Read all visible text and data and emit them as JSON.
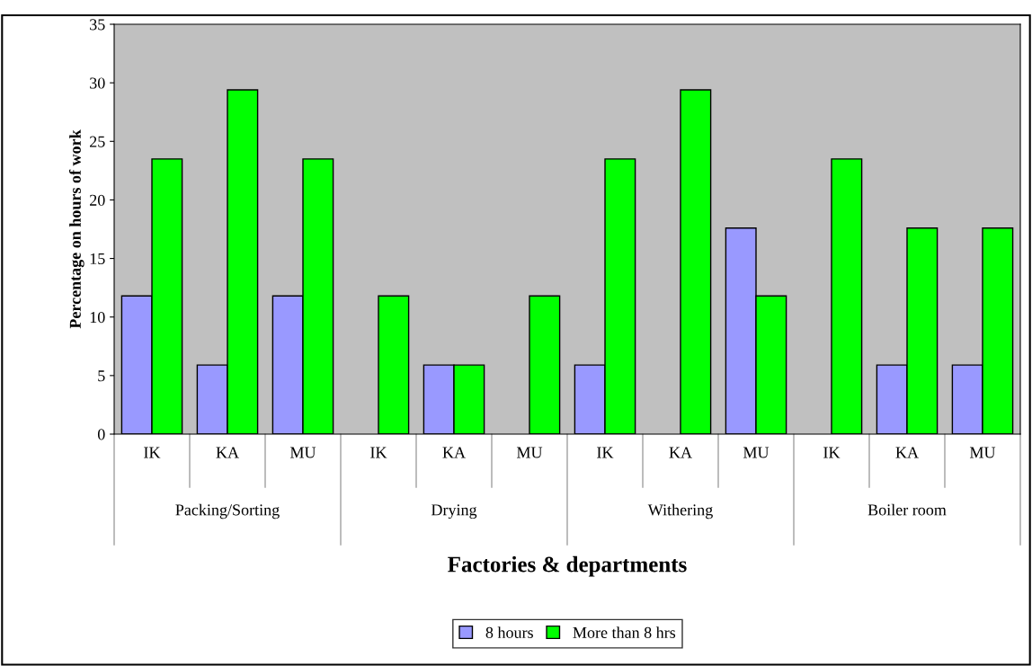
{
  "chart_data": {
    "type": "bar",
    "categories": [
      "IK",
      "KA",
      "MU",
      "IK",
      "KA",
      "MU",
      "IK",
      "KA",
      "MU",
      "IK",
      "KA",
      "MU"
    ],
    "series": [
      {
        "name": "8 hours",
        "color": "#9999ff",
        "values": [
          11.8,
          5.9,
          11.8,
          null,
          5.9,
          null,
          5.9,
          null,
          17.6,
          null,
          5.9,
          5.9
        ]
      },
      {
        "name": "More than 8 hrs",
        "color": "#00ff00",
        "values": [
          23.5,
          29.4,
          23.5,
          11.8,
          5.9,
          11.8,
          23.5,
          29.4,
          11.8,
          23.5,
          17.6,
          17.6
        ]
      }
    ],
    "xlabel": "Factories & departments",
    "ylabel": "Percentage on hours of work",
    "annotations": [
      "Packing/Sorting",
      "Drying",
      "Withering",
      "Boiler room"
    ],
    "ylim": [
      0,
      35
    ],
    "yticks": [
      0,
      5,
      10,
      15,
      20,
      25,
      30,
      35
    ],
    "grid": false,
    "legend": "bottom"
  }
}
